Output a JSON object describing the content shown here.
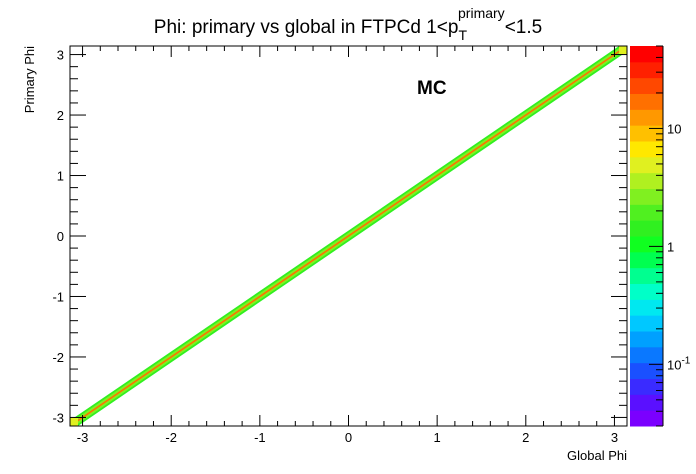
{
  "chart_data": {
    "type": "heatmap",
    "title": {
      "main": "Phi: primary vs global in FTPCd 1<p",
      "sup": "primary",
      "sub": "T",
      "tail": "<1.5"
    },
    "xlabel": "Global Phi",
    "ylabel": "Primary Phi",
    "xlim": [
      -3.1416,
      3.1416
    ],
    "ylim": [
      -3.1416,
      3.1416
    ],
    "x_ticks": [
      {
        "value": -3,
        "label": "-3"
      },
      {
        "value": -2,
        "label": "-2"
      },
      {
        "value": -1,
        "label": "-1"
      },
      {
        "value": 0,
        "label": "0"
      },
      {
        "value": 1,
        "label": "1"
      },
      {
        "value": 2,
        "label": "2"
      },
      {
        "value": 3,
        "label": "3"
      }
    ],
    "y_ticks": [
      {
        "value": -3,
        "label": "-3"
      },
      {
        "value": -2,
        "label": "-2"
      },
      {
        "value": -1,
        "label": "-1"
      },
      {
        "value": 0,
        "label": "0"
      },
      {
        "value": 1,
        "label": "1"
      },
      {
        "value": 2,
        "label": "2"
      },
      {
        "value": 3,
        "label": "3"
      }
    ],
    "annotation": "MC",
    "distribution": {
      "relation": "y = x",
      "band_halfwidth_outer": 0.09,
      "band_halfwidth_inner": 0.025,
      "corner_hotspots": [
        [
          -3.1416,
          -3.1416
        ],
        [
          3.1416,
          3.1416
        ]
      ]
    },
    "color_scale": {
      "scale": "log",
      "min": 0.03,
      "max": 50,
      "colors": [
        "#7b00ff",
        "#5a10ff",
        "#3a2bff",
        "#1a50ff",
        "#0a78ff",
        "#00a0ff",
        "#00c8ff",
        "#00e8f0",
        "#00ffc8",
        "#00ff90",
        "#00ff50",
        "#10ff20",
        "#30f020",
        "#50f020",
        "#80f020",
        "#b0f020",
        "#e0f020",
        "#ffe800",
        "#ffc000",
        "#ff9800",
        "#ff7000",
        "#ff4800",
        "#ff2000",
        "#ff0000"
      ],
      "tick_labels": [
        {
          "value": 10,
          "label": "10"
        },
        {
          "value": 1,
          "label": "1"
        },
        {
          "value": 0.1,
          "label": "10",
          "exp": "-1"
        }
      ]
    }
  }
}
